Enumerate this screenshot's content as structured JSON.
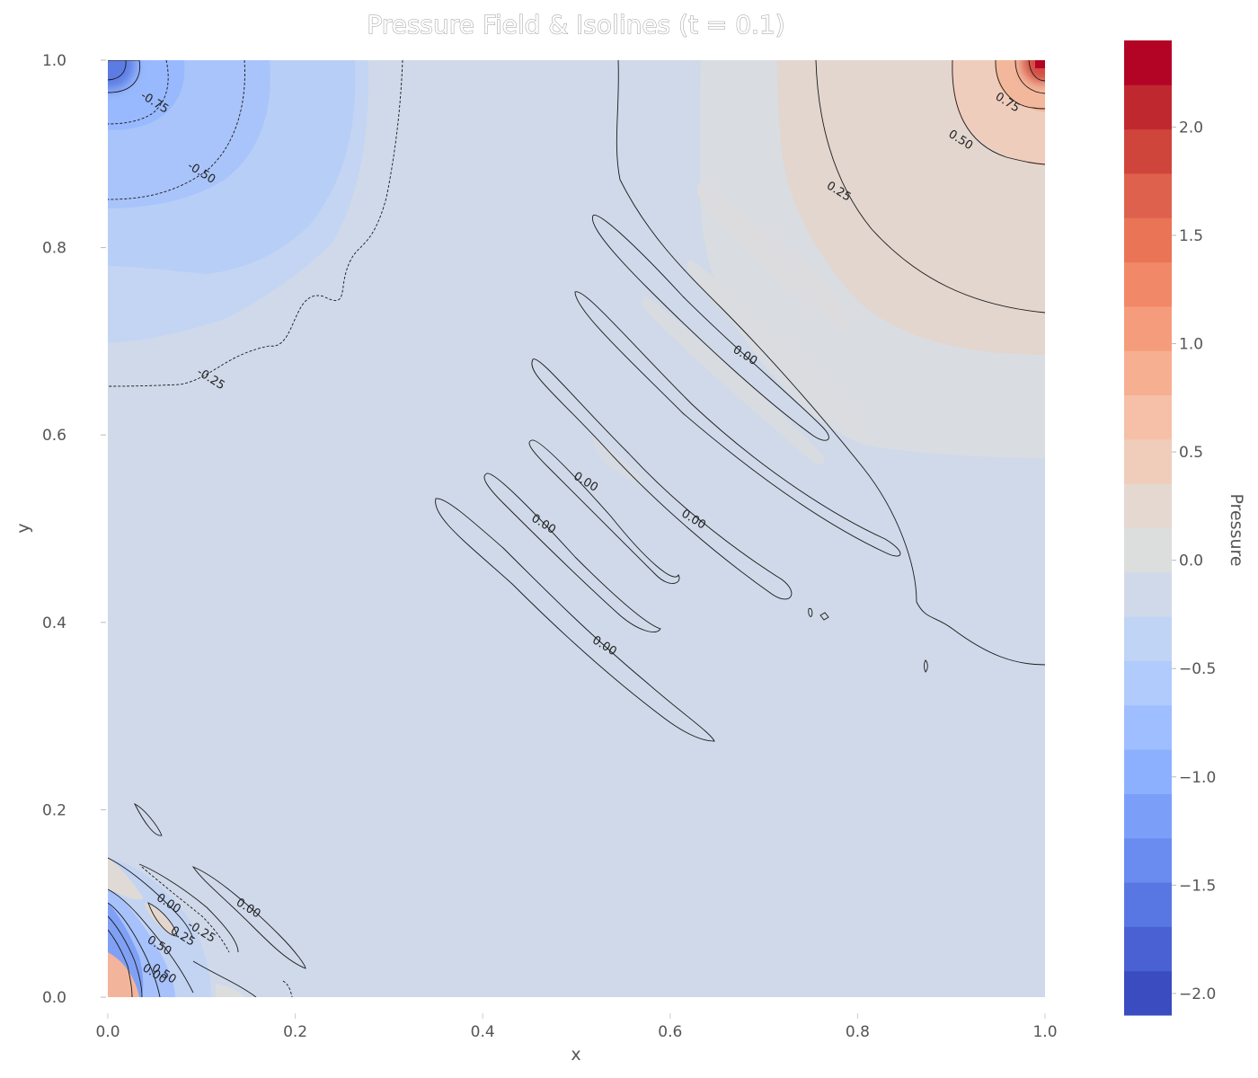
{
  "chart_data": {
    "type": "heatmap",
    "title": "Pressure Field & Isolines (t = 0.1)",
    "xlabel": "x",
    "ylabel": "y",
    "xlim": [
      0.0,
      1.0
    ],
    "ylim": [
      0.0,
      1.0
    ],
    "x_ticks": [
      "0.0",
      "0.2",
      "0.4",
      "0.6",
      "0.8",
      "1.0"
    ],
    "y_ticks": [
      "0.0",
      "0.2",
      "0.4",
      "0.6",
      "0.8",
      "1.0"
    ],
    "colorbar": {
      "label": "Pressure",
      "colormap": "coolwarm",
      "range": [
        -2.1,
        2.4
      ],
      "ticks": [
        "−2.0",
        "−1.5",
        "−1.0",
        "−0.5",
        "0.0",
        "0.5",
        "1.0",
        "1.5",
        "2.0"
      ],
      "colors": [
        "#3b4cc0",
        "#4961d2",
        "#5977e3",
        "#6a8bef",
        "#7b9ff9",
        "#8db0fe",
        "#9ebeff",
        "#b1cbfc",
        "#c0d4f5",
        "#cfd9e9",
        "#dcdddd",
        "#e5d8d1",
        "#f0cdbb",
        "#f5c0a7",
        "#f7af91",
        "#f59c7d",
        "#f18868",
        "#e97456",
        "#de614d",
        "#cf453c",
        "#c0282f",
        "#b40426"
      ]
    },
    "grid": false,
    "sources": [
      {
        "x": 0.0,
        "y": 1.0,
        "pressure": -2.0
      },
      {
        "x": 1.0,
        "y": 1.0,
        "pressure": 2.3
      },
      {
        "x": 0.0,
        "y": 0.0,
        "pressure": "mixed"
      }
    ],
    "isoline_levels": [
      -0.75,
      -0.5,
      -0.25,
      0.0,
      0.25,
      0.5,
      0.75
    ],
    "isoline_labels": [
      {
        "text": "-0.75",
        "x": 0.05,
        "y": 0.955
      },
      {
        "text": "-0.50",
        "x": 0.1,
        "y": 0.88
      },
      {
        "text": "-0.25",
        "x": 0.11,
        "y": 0.66
      },
      {
        "text": "0.75",
        "x": 0.96,
        "y": 0.955
      },
      {
        "text": "0.50",
        "x": 0.91,
        "y": 0.915
      },
      {
        "text": "0.25",
        "x": 0.78,
        "y": 0.86
      },
      {
        "text": "0.00",
        "x": 0.68,
        "y": 0.685
      },
      {
        "text": "0.00",
        "x": 0.51,
        "y": 0.55
      },
      {
        "text": "0.00",
        "x": 0.625,
        "y": 0.51
      },
      {
        "text": "0.00",
        "x": 0.465,
        "y": 0.505
      },
      {
        "text": "0.00",
        "x": 0.53,
        "y": 0.375
      },
      {
        "text": "0.00",
        "x": 0.15,
        "y": 0.095
      },
      {
        "text": "0.00",
        "x": 0.065,
        "y": 0.1
      },
      {
        "text": "-0.25",
        "x": 0.1,
        "y": 0.07
      },
      {
        "text": "0.25",
        "x": 0.08,
        "y": 0.065
      },
      {
        "text": "0.50",
        "x": 0.055,
        "y": 0.055
      },
      {
        "text": "0.00",
        "x": 0.05,
        "y": 0.025
      },
      {
        "text": "0.50",
        "x": 0.06,
        "y": 0.025
      }
    ]
  }
}
